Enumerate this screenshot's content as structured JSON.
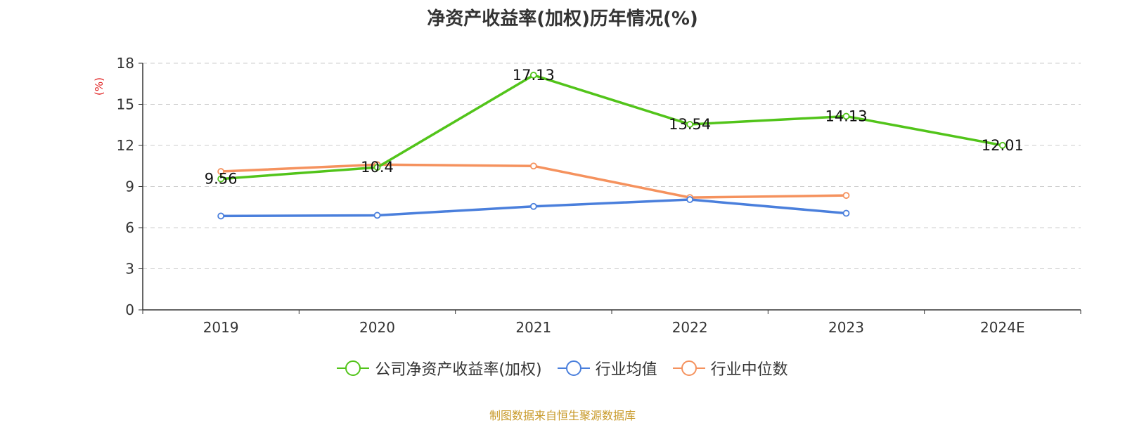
{
  "chart_data": {
    "type": "line",
    "title": "净资产收益率(加权)历年情况(%)",
    "ylabel": "(%)",
    "categories": [
      "2019",
      "2020",
      "2021",
      "2022",
      "2023",
      "2024E"
    ],
    "ylim": [
      0,
      18
    ],
    "yticks": [
      0,
      3,
      6,
      9,
      12,
      15,
      18
    ],
    "grid": true,
    "legend_position": "bottom",
    "series": [
      {
        "name": "公司净资产收益率(加权)",
        "color": "#52c41a",
        "values": [
          9.56,
          10.4,
          17.13,
          13.54,
          14.13,
          12.01
        ],
        "labels": [
          "9.56",
          "10.4",
          "17.13",
          "13.54",
          "14.13",
          "12.01"
        ]
      },
      {
        "name": "行业均值",
        "color": "#4a7fdc",
        "values": [
          6.85,
          6.9,
          7.55,
          8.05,
          7.05,
          null
        ]
      },
      {
        "name": "行业中位数",
        "color": "#f5925e",
        "values": [
          10.1,
          10.6,
          10.5,
          8.2,
          8.35,
          null
        ]
      }
    ]
  },
  "source": "制图数据来自恒生聚源数据库"
}
